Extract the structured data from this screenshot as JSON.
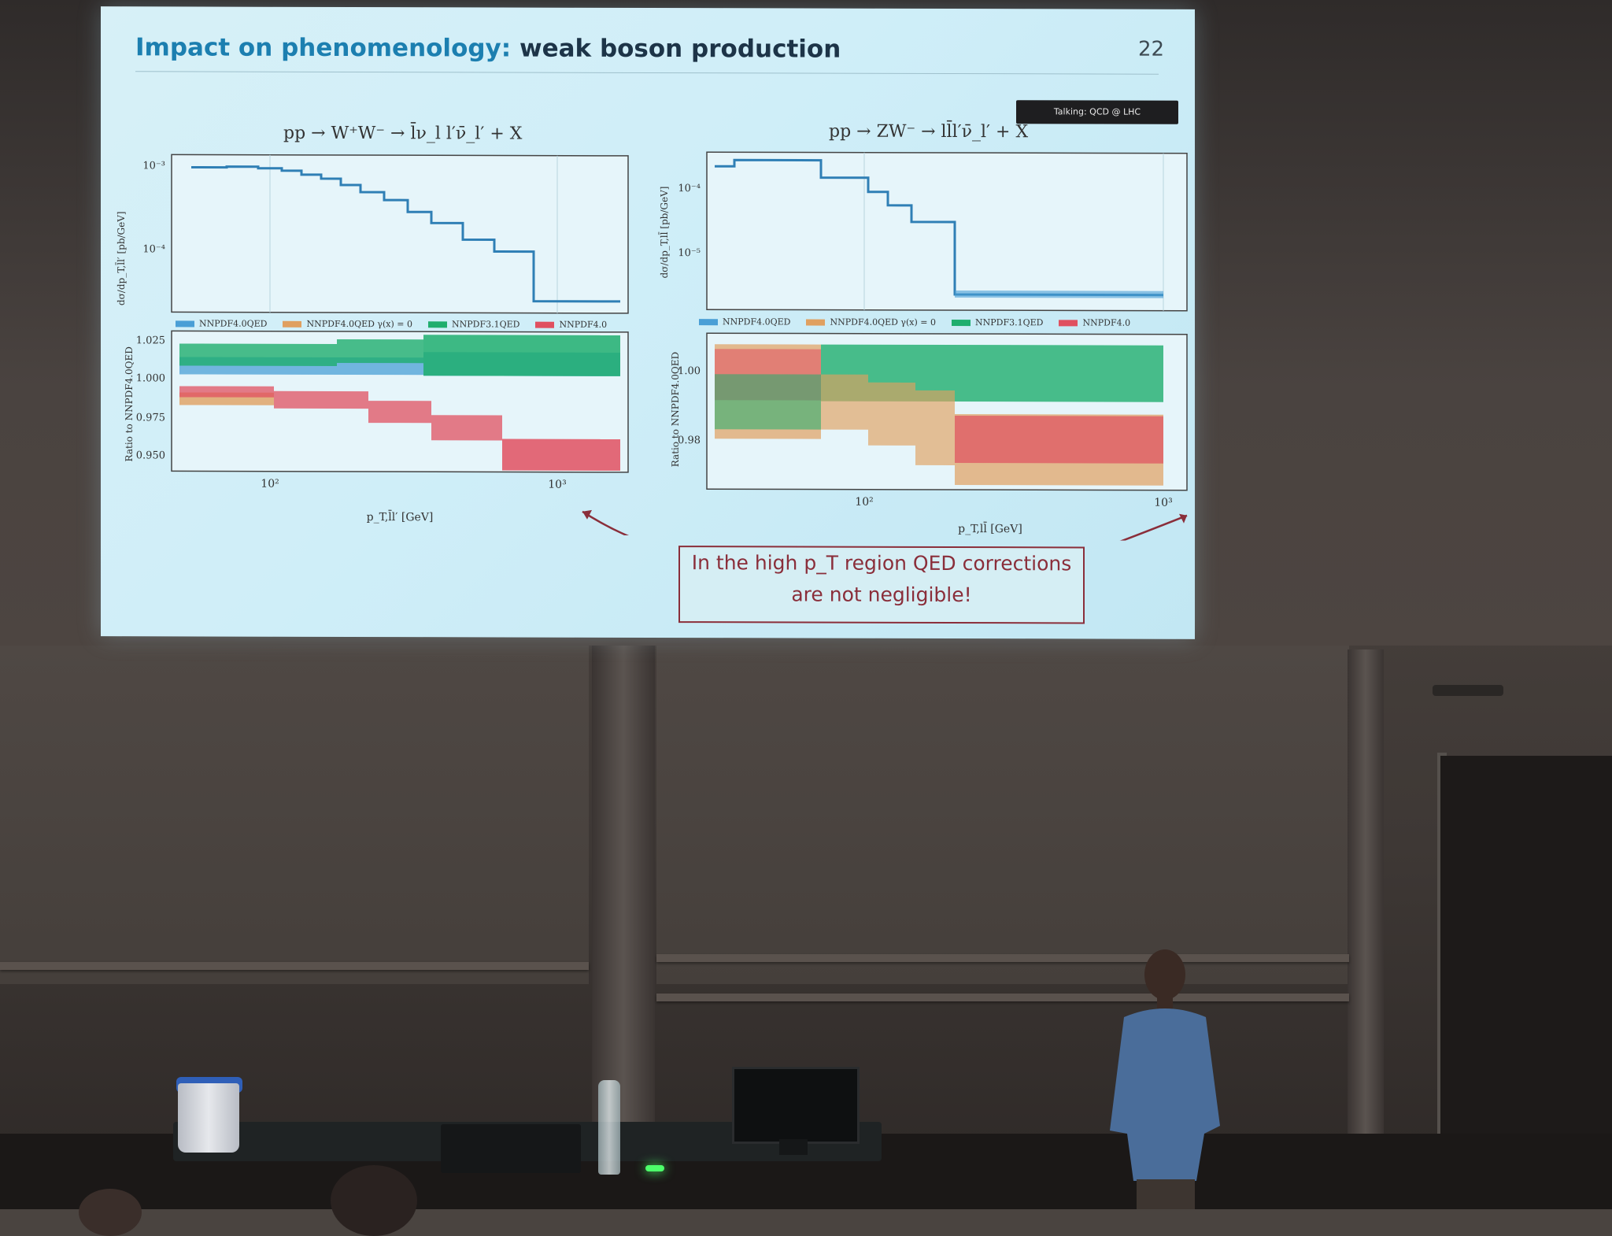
{
  "slide": {
    "title_accent": "Impact on phenomenology:",
    "title_rest": " weak boson production",
    "page_number": "22",
    "talk_badge": "Talking: QCD @ LHC"
  },
  "left_plot": {
    "title": "pp → W⁺W⁻ → l̄ν_l l′ν̄_l′ + X",
    "ylabel_top": "dσ/dp_T,l̄l′ [pb/GeV]",
    "ylabel_bottom": "Ratio to NNPDF4.0QED",
    "xlabel": "p_T,l̄l′ [GeV]",
    "top_ticks": [
      "10⁻³",
      "10⁻⁴"
    ],
    "bottom_ticks": [
      "1.025",
      "1.000",
      "0.975",
      "0.950"
    ],
    "x_ticks": [
      "10²",
      "10³"
    ]
  },
  "right_plot": {
    "title": "pp → ZW⁻ → ll̄l′ν̄_l′ + X",
    "ylabel_top": "dσ/dp_T,ll̄ [pb/GeV]",
    "ylabel_bottom": "Ratio to NNPDF4.0QED",
    "xlabel": "p_T,ll̄ [GeV]",
    "top_ticks": [
      "10⁻⁴",
      "10⁻⁵"
    ],
    "bottom_ticks": [
      "1.00",
      "0.98"
    ],
    "x_ticks": [
      "10²",
      "10³"
    ]
  },
  "legend": [
    "NNPDF4.0QED",
    "NNPDF4.0QED γ(x) = 0",
    "NNPDF3.1QED",
    "NNPDF4.0"
  ],
  "colors": {
    "nnpdf40qed": "#4a9fd6",
    "nnpdf40qed_nogamma": "#e0a060",
    "nnpdf31qed": "#1fae6e",
    "nnpdf40": "#e05060",
    "callout": "#8a2e3a",
    "title_accent": "#1c7fb0"
  },
  "callout": {
    "line1": "In the high p_T region QED corrections",
    "line2": "are not negligible!"
  }
}
